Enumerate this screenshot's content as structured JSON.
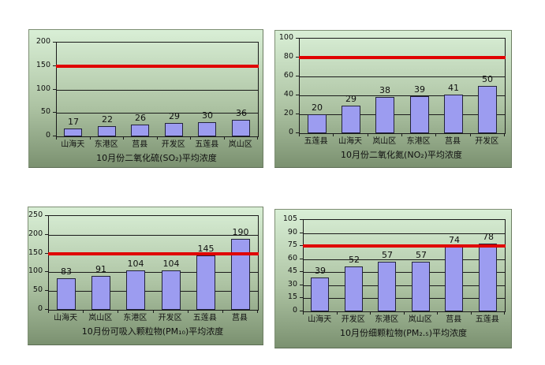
{
  "colors": {
    "page_bg": "#ffffff",
    "panel_gradient_top": "#d9efd6",
    "panel_gradient_bottom": "#7b9170",
    "bar_fill": "#9c9cf0",
    "bar_border": "#23233a",
    "grid_line": "#1a1a1a",
    "reference_line": "#e00000",
    "text": "#101010"
  },
  "chart_data": [
    {
      "type": "bar",
      "title": "10月份二氧化硫(SO₂)平均浓度",
      "categories": [
        "山海天",
        "东港区",
        "莒县",
        "开发区",
        "五莲县",
        "岚山区"
      ],
      "values": [
        17,
        22,
        26,
        29,
        30,
        36
      ],
      "xlabel": "",
      "ylabel": "",
      "ylim": [
        0,
        200
      ],
      "yticks": [
        0,
        50,
        100,
        150,
        200
      ],
      "ref_line": 150,
      "grid": true,
      "legend": "none",
      "bar_labels": true
    },
    {
      "type": "bar",
      "title": "10月份二氧化氮(NO₂)平均浓度",
      "categories": [
        "五莲县",
        "山海天",
        "岚山区",
        "东港区",
        "莒县",
        "开发区"
      ],
      "values": [
        20,
        29,
        38,
        39,
        41,
        50
      ],
      "xlabel": "",
      "ylabel": "",
      "ylim": [
        0,
        100
      ],
      "yticks": [
        0,
        20,
        40,
        60,
        80,
        100
      ],
      "ref_line": 80,
      "grid": true,
      "legend": "none",
      "bar_labels": true
    },
    {
      "type": "bar",
      "title": "10月份可吸入颗粒物(PM₁₀)平均浓度",
      "categories": [
        "山海天",
        "岚山区",
        "东港区",
        "开发区",
        "五莲县",
        "莒县"
      ],
      "values": [
        83,
        91,
        104,
        104,
        145,
        190
      ],
      "xlabel": "",
      "ylabel": "",
      "ylim": [
        0,
        250
      ],
      "yticks": [
        0,
        50,
        100,
        150,
        200,
        250
      ],
      "ref_line": 150,
      "grid": true,
      "legend": "none",
      "bar_labels": true
    },
    {
      "type": "bar",
      "title": "10月份细颗粒物(PM₂.₅)平均浓度",
      "categories": [
        "山海天",
        "开发区",
        "东港区",
        "岚山区",
        "莒县",
        "五莲县"
      ],
      "values": [
        39,
        52,
        57,
        57,
        74,
        78
      ],
      "xlabel": "",
      "ylabel": "",
      "ylim": [
        0,
        105
      ],
      "yticks": [
        0,
        15,
        30,
        45,
        60,
        75,
        90,
        105
      ],
      "ref_line": 75,
      "grid": true,
      "legend": "none",
      "bar_labels": true
    }
  ]
}
